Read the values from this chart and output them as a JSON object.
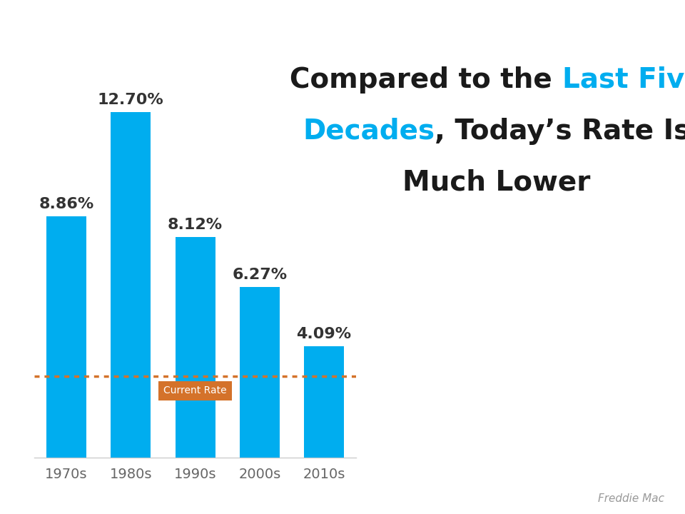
{
  "categories": [
    "1970s",
    "1980s",
    "1990s",
    "2000s",
    "2010s"
  ],
  "values": [
    8.86,
    12.7,
    8.12,
    6.27,
    4.09
  ],
  "labels": [
    "8.86%",
    "12.70%",
    "8.12%",
    "6.27%",
    "4.09%"
  ],
  "bar_color": "#00ADEF",
  "dotted_line_color": "#D4722A",
  "current_rate_label": "Current Rate",
  "current_rate_label_color": "#FFFFFF",
  "current_rate_box_color": "#D4722A",
  "dotted_line_y": 3.0,
  "title_black": "#1a1a1a",
  "title_blue_color": "#00ADEF",
  "title_fontsize": 28,
  "label_fontsize": 16,
  "tick_fontsize": 14,
  "source_text": "Freddie Mac",
  "source_fontsize": 11,
  "source_color": "#999999",
  "ylim": [
    0,
    15.5
  ],
  "background_color": "#FFFFFF"
}
